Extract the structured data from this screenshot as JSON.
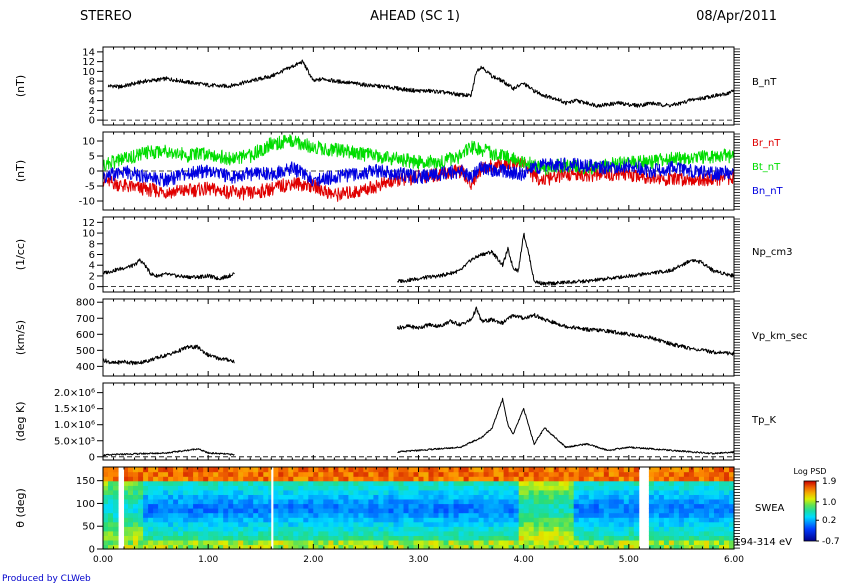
{
  "header": {
    "left": "STEREO",
    "center": "AHEAD (SC 1)",
    "right": "08/Apr/2011"
  },
  "footer": {
    "credit": "Produced by CLWeb"
  },
  "x_axis": {
    "ticks": [
      "0.00",
      "1.00",
      "2.00",
      "3.00",
      "4.00",
      "5.00",
      "6.00"
    ],
    "range": [
      0,
      6
    ],
    "gaps": [
      [
        0.15,
        0.2
      ],
      [
        1.6,
        1.62
      ],
      [
        5.1,
        5.17
      ]
    ]
  },
  "colorbar": {
    "title": "Log PSD",
    "ticks": [
      "1.9",
      "1.0",
      "0.2",
      "-0.7"
    ],
    "range": [
      -0.7,
      1.9
    ]
  },
  "chart_data": [
    {
      "type": "line",
      "ylabel": "(nT)",
      "ylim": [
        -1,
        15
      ],
      "yticks": [
        "0",
        "2",
        "4",
        "6",
        "8",
        "10",
        "12",
        "14"
      ],
      "zero_line": true,
      "series": [
        {
          "name": "B_nT",
          "color": "#000000",
          "x": [
            0.05,
            0.1,
            0.15,
            0.2,
            0.3,
            0.4,
            0.5,
            0.6,
            0.7,
            0.8,
            0.9,
            1.0,
            1.1,
            1.2,
            1.3,
            1.4,
            1.5,
            1.6,
            1.7,
            1.8,
            1.9,
            2.0,
            2.1,
            2.2,
            2.3,
            2.4,
            2.5,
            2.6,
            2.7,
            2.8,
            2.9,
            3.0,
            3.1,
            3.2,
            3.3,
            3.4,
            3.5,
            3.55,
            3.6,
            3.7,
            3.8,
            3.9,
            4.0,
            4.1,
            4.2,
            4.3,
            4.4,
            4.5,
            4.6,
            4.7,
            4.8,
            4.9,
            5.0,
            5.1,
            5.2,
            5.3,
            5.4,
            5.5,
            5.6,
            5.7,
            5.8,
            5.9,
            6.0
          ],
          "y": [
            7,
            7,
            6.8,
            7,
            7.5,
            8,
            8.2,
            8.5,
            8.2,
            7.8,
            7.5,
            7.2,
            7,
            7,
            7.5,
            8,
            8.5,
            9,
            10,
            11,
            12,
            8,
            8.5,
            8,
            7.8,
            7.5,
            7.2,
            7,
            6.8,
            6.5,
            6.2,
            6,
            6,
            5.8,
            5.5,
            5.2,
            5,
            10,
            11,
            9,
            8,
            6.5,
            7.5,
            6,
            5,
            4.5,
            3.5,
            4,
            3.5,
            3,
            3.2,
            3.5,
            3.2,
            3,
            3.5,
            3.2,
            3,
            3.5,
            4.2,
            4.5,
            5,
            5.2,
            6
          ]
        }
      ]
    },
    {
      "type": "line",
      "ylabel": "(nT)",
      "ylim": [
        -13,
        13
      ],
      "yticks": [
        "-10",
        "-5",
        "0",
        "5",
        "10"
      ],
      "zero_line": true,
      "series": [
        {
          "name": "Br_nT",
          "color": "#e00000",
          "x": [
            0.0,
            0.2,
            0.4,
            0.6,
            0.8,
            1.0,
            1.2,
            1.4,
            1.6,
            1.8,
            2.0,
            2.2,
            2.4,
            2.6,
            2.8,
            3.0,
            3.2,
            3.4,
            3.5,
            3.6,
            3.8,
            4.0,
            4.1,
            4.2,
            4.4,
            4.6,
            4.8,
            5.0,
            5.2,
            5.4,
            5.6,
            5.8,
            6.0
          ],
          "y": [
            -3,
            -5,
            -6,
            -7,
            -6.5,
            -6,
            -7,
            -7.5,
            -6,
            -4,
            -5,
            -8,
            -7,
            -5,
            -3,
            -2,
            -1,
            0,
            -4,
            1,
            2,
            3,
            -2,
            -3,
            -1,
            -1.5,
            -1,
            -1,
            -2,
            -3,
            -2.5,
            -3,
            -2
          ]
        },
        {
          "name": "Bt_nT",
          "color": "#00dd00",
          "x": [
            0.0,
            0.2,
            0.4,
            0.6,
            0.8,
            1.0,
            1.2,
            1.4,
            1.6,
            1.8,
            2.0,
            2.2,
            2.4,
            2.6,
            2.8,
            3.0,
            3.2,
            3.4,
            3.5,
            3.6,
            3.8,
            4.0,
            4.1,
            4.2,
            4.4,
            4.6,
            4.8,
            5.0,
            5.2,
            5.4,
            5.6,
            5.8,
            6.0
          ],
          "y": [
            2,
            4,
            6,
            7,
            5,
            6,
            4,
            5,
            9,
            10,
            8,
            7,
            6,
            5,
            4,
            3,
            3,
            5,
            8,
            7,
            5,
            3,
            2,
            1,
            2,
            1,
            2,
            3,
            3,
            4,
            4,
            5,
            5
          ]
        },
        {
          "name": "Bn_nT",
          "color": "#0000e0",
          "x": [
            0.0,
            0.2,
            0.4,
            0.6,
            0.8,
            1.0,
            1.2,
            1.4,
            1.6,
            1.8,
            2.0,
            2.2,
            2.4,
            2.6,
            2.8,
            3.0,
            3.2,
            3.4,
            3.5,
            3.6,
            3.8,
            4.0,
            4.1,
            4.2,
            4.4,
            4.6,
            4.8,
            5.0,
            5.2,
            5.4,
            5.6,
            5.8,
            6.0
          ],
          "y": [
            -2,
            0,
            -2,
            -3,
            -1,
            0,
            -2,
            -1,
            -1,
            1,
            -3,
            -2,
            -1,
            0,
            -1,
            -2,
            -1,
            0,
            -2,
            1,
            0,
            -1,
            1,
            2,
            2,
            2,
            1,
            2,
            0,
            1,
            0,
            -1,
            0
          ]
        }
      ]
    },
    {
      "type": "line",
      "ylabel": "(1/cc)",
      "ylim": [
        -1,
        13
      ],
      "yticks": [
        "0",
        "2",
        "4",
        "6",
        "8",
        "10",
        "12"
      ],
      "zero_line": true,
      "series": [
        {
          "name": "Np_cm3",
          "color": "#000000",
          "segments": [
            {
              "x": [
                0.0,
                0.1,
                0.2,
                0.3,
                0.35,
                0.4,
                0.45,
                0.5,
                0.6,
                0.7,
                0.8,
                0.9,
                1.0,
                1.1,
                1.2,
                1.25
              ],
              "y": [
                2.5,
                3,
                3.5,
                4,
                5,
                4,
                2.5,
                2,
                2.3,
                2,
                1.8,
                1.8,
                2,
                1.5,
                2,
                2.5
              ]
            },
            {
              "x": [
                2.8,
                2.9,
                3.0,
                3.1,
                3.2,
                3.3,
                3.4,
                3.5,
                3.6,
                3.7,
                3.8,
                3.85,
                3.9,
                3.95,
                4.0,
                4.05,
                4.1,
                4.2,
                4.4,
                4.6,
                4.8,
                5.0,
                5.2,
                5.4,
                5.6,
                5.7,
                5.8,
                5.9,
                6.0
              ],
              "y": [
                1,
                1.2,
                1.5,
                1.8,
                2,
                2.5,
                3,
                5,
                6,
                6.5,
                4,
                7,
                3.5,
                3,
                10,
                6,
                1,
                0.5,
                0.8,
                1,
                1.5,
                2,
                2.5,
                3,
                5,
                4.5,
                3,
                2.5,
                2
              ]
            }
          ]
        }
      ]
    },
    {
      "type": "line",
      "ylabel": "(km/s)",
      "ylim": [
        340,
        820
      ],
      "yticks": [
        "400",
        "500",
        "600",
        "700",
        "800"
      ],
      "zero_line": false,
      "series": [
        {
          "name": "Vp_km_sec",
          "color": "#000000",
          "segments": [
            {
              "x": [
                0.0,
                0.1,
                0.2,
                0.3,
                0.4,
                0.5,
                0.6,
                0.7,
                0.8,
                0.9,
                1.0,
                1.1,
                1.2,
                1.25
              ],
              "y": [
                440,
                420,
                430,
                420,
                430,
                450,
                470,
                490,
                520,
                520,
                470,
                450,
                440,
                430
              ]
            },
            {
              "x": [
                2.8,
                2.9,
                3.0,
                3.1,
                3.2,
                3.3,
                3.4,
                3.5,
                3.55,
                3.6,
                3.7,
                3.8,
                3.9,
                4.0,
                4.1,
                4.2,
                4.3,
                4.4,
                4.5,
                4.6,
                4.8,
                5.0,
                5.2,
                5.4,
                5.6,
                5.8,
                6.0
              ],
              "y": [
                640,
                650,
                640,
                660,
                650,
                680,
                660,
                690,
                760,
                680,
                690,
                670,
                720,
                700,
                720,
                690,
                670,
                650,
                640,
                630,
                620,
                600,
                580,
                540,
                510,
                490,
                480
              ]
            }
          ]
        }
      ]
    },
    {
      "type": "line",
      "ylabel": "(deg K)",
      "ylim": [
        -100000,
        2300000
      ],
      "yticks": [
        "0",
        "5.0×10⁵",
        "1.0×10⁶",
        "1.5×10⁶",
        "2.0×10⁶"
      ],
      "zero_line": true,
      "series": [
        {
          "name": "Tp_K",
          "color": "#000000",
          "segments": [
            {
              "x": [
                0.0,
                0.2,
                0.4,
                0.6,
                0.8,
                0.9,
                1.0,
                1.2,
                1.25
              ],
              "y": [
                50000,
                80000,
                100000,
                120000,
                200000,
                250000,
                120000,
                80000,
                60000
              ]
            },
            {
              "x": [
                2.8,
                3.0,
                3.2,
                3.4,
                3.5,
                3.6,
                3.7,
                3.8,
                3.85,
                3.9,
                4.0,
                4.1,
                4.2,
                4.4,
                4.6,
                4.8,
                5.0,
                5.2,
                5.4,
                5.6,
                5.8,
                6.0
              ],
              "y": [
                150000,
                200000,
                250000,
                300000,
                450000,
                600000,
                900000,
                1800000,
                1000000,
                700000,
                1500000,
                400000,
                900000,
                300000,
                400000,
                200000,
                300000,
                250000,
                200000,
                150000,
                100000,
                150000
              ]
            }
          ]
        }
      ]
    },
    {
      "type": "heatmap",
      "ylabel": "θ (deg)",
      "ylim": [
        0,
        180
      ],
      "yticks": [
        "0",
        "50",
        "100",
        "150"
      ],
      "label": "SWEA",
      "energy": "194-314 eV"
    }
  ]
}
